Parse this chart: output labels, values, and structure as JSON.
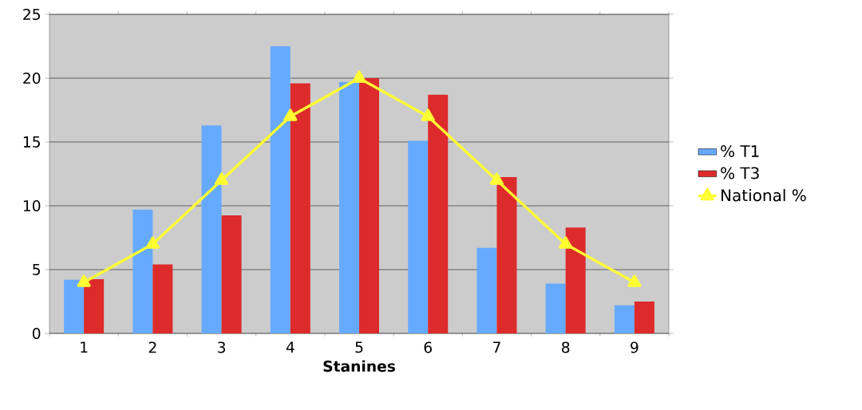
{
  "chart_data": {
    "type": "bar",
    "xlabel": "Stanines",
    "categories": [
      "1",
      "2",
      "3",
      "4",
      "5",
      "6",
      "7",
      "8",
      "9"
    ],
    "series": [
      {
        "name": "% T1",
        "color": "#66aaff",
        "values": [
          4.2,
          9.7,
          16.3,
          22.5,
          19.7,
          15.1,
          6.7,
          3.9,
          2.2
        ]
      },
      {
        "name": "% T3",
        "color": "#dd2b2b",
        "values": [
          4.25,
          5.4,
          9.25,
          19.6,
          20.0,
          18.7,
          12.25,
          8.3,
          2.5
        ]
      },
      {
        "name": "National %",
        "type": "line",
        "color": "#ffff33",
        "marker": "triangle",
        "values": [
          4,
          7,
          12,
          17,
          20,
          17,
          12,
          7,
          4
        ]
      }
    ],
    "ylim": [
      0,
      25
    ],
    "yticks": [
      0,
      5,
      10,
      15,
      20,
      25
    ],
    "grid": "y",
    "legend": "right"
  }
}
